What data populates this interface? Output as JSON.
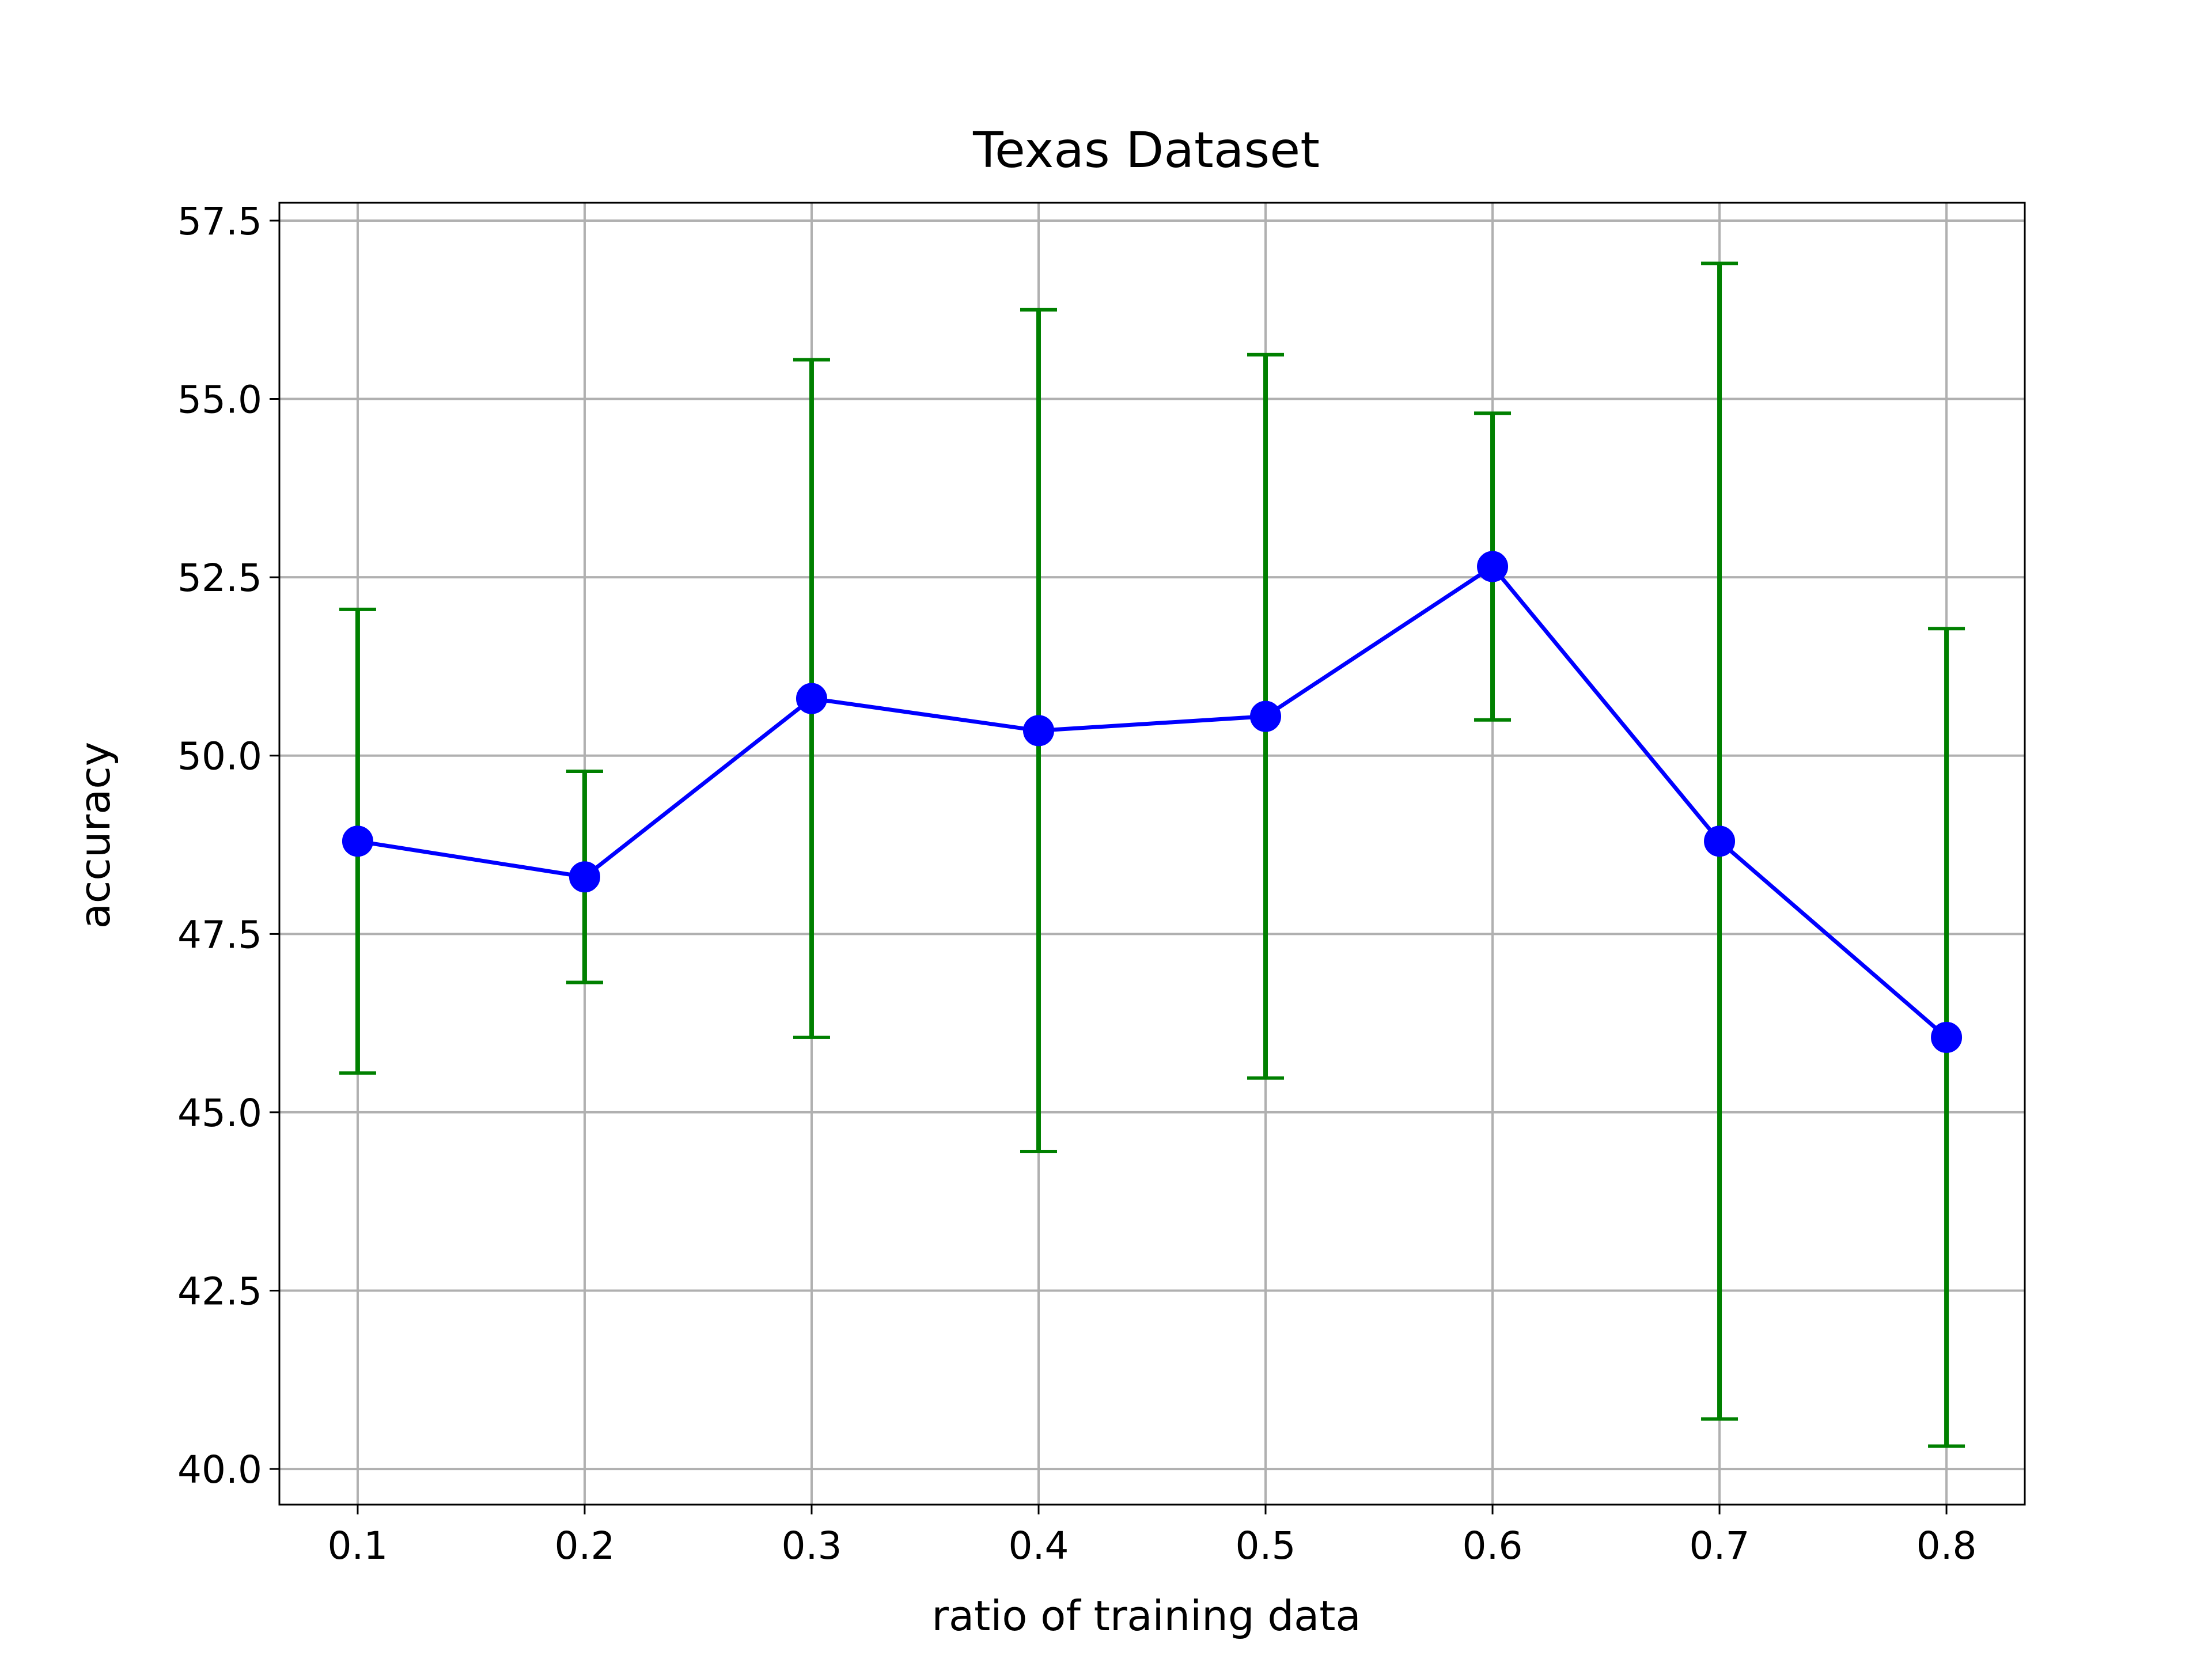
{
  "chart_data": {
    "type": "line",
    "title": "Texas Dataset",
    "xlabel": "ratio of training data",
    "ylabel": "accuracy",
    "x": [
      0.1,
      0.2,
      0.3,
      0.4,
      0.5,
      0.6,
      0.7,
      0.8
    ],
    "x_tick_labels": [
      "0.1",
      "0.2",
      "0.3",
      "0.4",
      "0.5",
      "0.6",
      "0.7",
      "0.8"
    ],
    "y_ticks": [
      40.0,
      42.5,
      45.0,
      47.5,
      50.0,
      52.5,
      55.0,
      57.5
    ],
    "y_tick_labels": [
      "40.0",
      "42.5",
      "45.0",
      "47.5",
      "50.0",
      "52.5",
      "55.0",
      "57.5"
    ],
    "xlim": [
      0.0655,
      0.8345
    ],
    "ylim": [
      39.5,
      57.75
    ],
    "grid": true,
    "series": [
      {
        "values": [
          48.8,
          48.3,
          50.8,
          50.35,
          50.55,
          52.65,
          48.8,
          46.05
        ],
        "error": [
          3.25,
          1.48,
          4.75,
          5.9,
          5.07,
          2.15,
          8.1,
          5.73
        ],
        "color": "#0000ff",
        "marker": "circle",
        "error_color": "#008000"
      }
    ]
  }
}
